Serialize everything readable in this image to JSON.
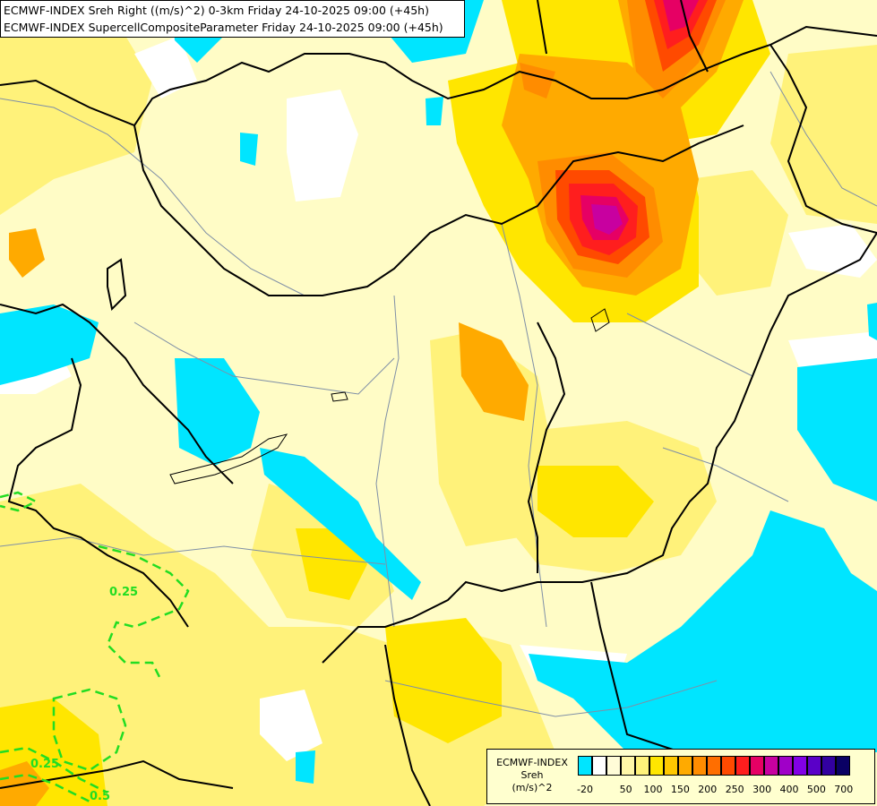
{
  "header": {
    "line1": "ECMWF-INDEX Sreh Right ((m/s)^2) 0-3km Friday 24-10-2025 09:00 (+45h)",
    "line2": "ECMWF-INDEX SupercellCompositeParameter Friday 24-10-2025 09:00 (+45h)"
  },
  "legend": {
    "title": "ECMWF-INDEX",
    "subtitle": "Sreh",
    "unit": "(m/s)^2",
    "colors": [
      "#00e5ff",
      "#ffffff",
      "#fffcd8",
      "#fff7a8",
      "#fff27a",
      "#ffe600",
      "#ffc800",
      "#ffaa00",
      "#ff8c00",
      "#ff6e00",
      "#ff4a00",
      "#ff1e1e",
      "#e60064",
      "#c800a0",
      "#a000c8",
      "#8200e6",
      "#5a00c8",
      "#3200a0",
      "#0a0064"
    ],
    "tick_labels": [
      "-20",
      "50",
      "100",
      "150",
      "200",
      "250",
      "300",
      "400",
      "500",
      "700"
    ]
  },
  "contours": {
    "scp_labels": [
      "0.25",
      "0.25",
      "0.5"
    ]
  },
  "map_colors": {
    "background": "#fffcc6",
    "cyan": "#00e5ff",
    "white": "#ffffff",
    "light_yellow": "#fff7a8",
    "yellow": "#fff27a",
    "gold": "#ffe600",
    "orange_light": "#ffc800",
    "orange": "#ffaa00",
    "orange_dark": "#ff8c00",
    "red_orange": "#ff4a00",
    "red": "#ff1e1e",
    "magenta": "#e60064",
    "purple": "#c800a0",
    "border": "#000000",
    "rivers": "#7f8fa6",
    "scp_contour": "#22dd22"
  }
}
